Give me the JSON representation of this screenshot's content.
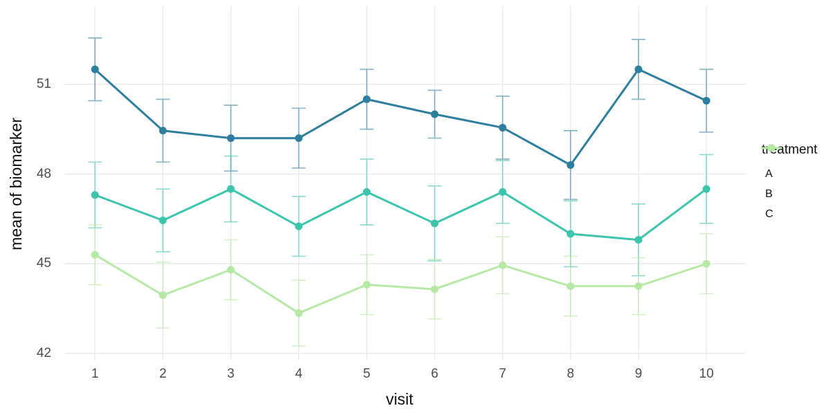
{
  "chart_data": {
    "type": "line",
    "title": "",
    "xlabel": "visit",
    "ylabel": "mean of biomarker",
    "x": [
      1,
      2,
      3,
      4,
      5,
      6,
      7,
      8,
      9,
      10
    ],
    "series": [
      {
        "name": "A",
        "color": "#2e7e9e",
        "values": [
          51.5,
          49.45,
          49.2,
          49.2,
          50.5,
          50.0,
          49.55,
          48.3,
          51.5,
          50.45
        ],
        "errors": [
          1.05,
          1.05,
          1.1,
          1.0,
          1.0,
          0.8,
          1.05,
          1.15,
          1.0,
          1.05
        ]
      },
      {
        "name": "B",
        "color": "#3cc4ad",
        "values": [
          47.3,
          46.45,
          47.5,
          46.25,
          47.4,
          46.35,
          47.4,
          46.0,
          45.8,
          47.5
        ],
        "errors": [
          1.1,
          1.05,
          1.1,
          1.0,
          1.1,
          1.25,
          1.05,
          1.1,
          1.2,
          1.15
        ]
      },
      {
        "name": "C",
        "color": "#b6e8a6",
        "values": [
          45.3,
          43.95,
          44.8,
          43.35,
          44.3,
          44.15,
          44.95,
          44.25,
          44.25,
          45.0
        ],
        "errors": [
          1.0,
          1.1,
          1.0,
          1.1,
          1.0,
          1.0,
          0.95,
          1.0,
          0.95,
          1.0
        ]
      }
    ],
    "error_bars": true,
    "grid": true,
    "y_ticks": [
      42,
      45,
      48,
      51
    ],
    "x_ticks": [
      1,
      2,
      3,
      4,
      5,
      6,
      7,
      8,
      9,
      10
    ],
    "ylim": [
      41.77,
      53.61
    ],
    "xlim": [
      0.55,
      10.58
    ],
    "legend": {
      "title": "treatment",
      "position": "right",
      "entries": [
        "A",
        "B",
        "C"
      ]
    }
  },
  "colors": {
    "background": "#ffffff",
    "gridline": "#e9e9e9",
    "tick_text": "#4d4d4d",
    "title_text": "#111111"
  }
}
